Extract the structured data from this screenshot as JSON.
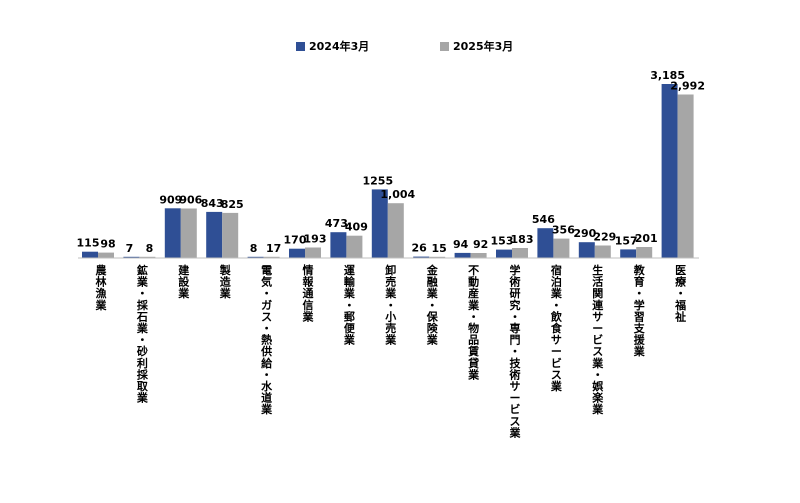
{
  "chart_data": {
    "type": "bar",
    "categories": [
      "農林漁業",
      "鉱業・採石業・砂利採取業",
      "建設業",
      "製造業",
      "電気・ガス・熱供給・水道業",
      "情報通信業",
      "運輸業・郵便業",
      "卸売業・小売業",
      "金融業・保険業",
      "不動産業・物品賃貸業",
      "学術研究・専門・技術サービス業",
      "宿泊業・飲食サービス業",
      "生活関連サービス業・娯楽業",
      "教育・学習支援業",
      "医療・福祉"
    ],
    "series": [
      {
        "name": "2024年3月",
        "color": "#2f4f95",
        "values": [
          115,
          7,
          909,
          843,
          8,
          170,
          473,
          1255,
          26,
          94,
          153,
          546,
          290,
          157,
          3185
        ],
        "labels": [
          "115",
          "7",
          "909",
          "843",
          "8",
          "170",
          "473",
          "1255",
          "26",
          "94",
          "153",
          "546",
          "290",
          "157",
          "3,185"
        ]
      },
      {
        "name": "2025年3月",
        "color": "#a6a6a6",
        "values": [
          98,
          8,
          906,
          825,
          17,
          193,
          409,
          1004,
          15,
          92,
          183,
          356,
          229,
          201,
          2992
        ],
        "labels": [
          "98",
          "8",
          "906",
          "825",
          "17",
          "193",
          "409",
          "1,004",
          "15",
          "92",
          "183",
          "356",
          "229",
          "201",
          "2,992"
        ]
      }
    ],
    "title": "",
    "xlabel": "",
    "ylabel": "",
    "ylim": [
      0,
      3185
    ],
    "grid": false,
    "legend_position": "top-center"
  }
}
